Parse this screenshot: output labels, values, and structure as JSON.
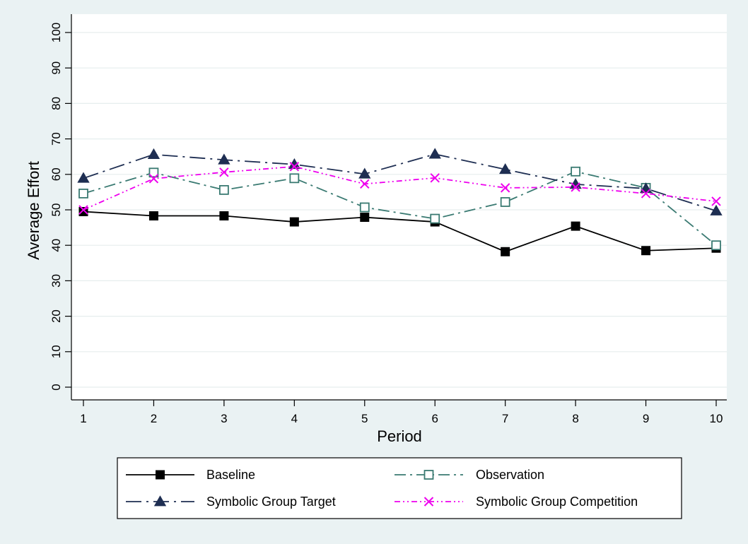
{
  "chart_data": {
    "type": "line",
    "xlabel": "Period",
    "ylabel": "Average Effort",
    "x": [
      1,
      2,
      3,
      4,
      5,
      6,
      7,
      8,
      9,
      10
    ],
    "xticks": [
      "1",
      "2",
      "3",
      "4",
      "5",
      "6",
      "7",
      "8",
      "9",
      "10"
    ],
    "ylim": [
      0,
      100
    ],
    "yticks": [
      "0",
      "10",
      "20",
      "30",
      "40",
      "50",
      "60",
      "70",
      "80",
      "90",
      "100"
    ],
    "grid": true,
    "legend_position": "bottom",
    "series": [
      {
        "name": "Baseline",
        "color": "#000000",
        "marker": "filled-square",
        "line": "solid",
        "values": [
          49.5,
          48.3,
          48.3,
          46.6,
          47.9,
          46.6,
          38.2,
          45.4,
          38.5,
          39.2
        ]
      },
      {
        "name": "Observation",
        "color": "#3a7a72",
        "marker": "hollow-square",
        "line": "dash-dot",
        "values": [
          54.6,
          60.5,
          55.6,
          58.9,
          50.7,
          47.5,
          52.2,
          60.8,
          56.2,
          40.0
        ]
      },
      {
        "name": "Symbolic Group Target",
        "color": "#1e2e52",
        "marker": "filled-triangle",
        "line": "long-dash-dot",
        "values": [
          58.9,
          65.6,
          64.1,
          62.8,
          60.1,
          65.7,
          61.4,
          57.2,
          56.0,
          49.7
        ]
      },
      {
        "name": "Symbolic Group Competition",
        "color": "#ee00ee",
        "marker": "x",
        "line": "dash-dot-dot",
        "values": [
          50.0,
          58.8,
          60.6,
          62.2,
          57.3,
          59.0,
          56.2,
          56.4,
          54.6,
          52.4
        ]
      }
    ]
  }
}
